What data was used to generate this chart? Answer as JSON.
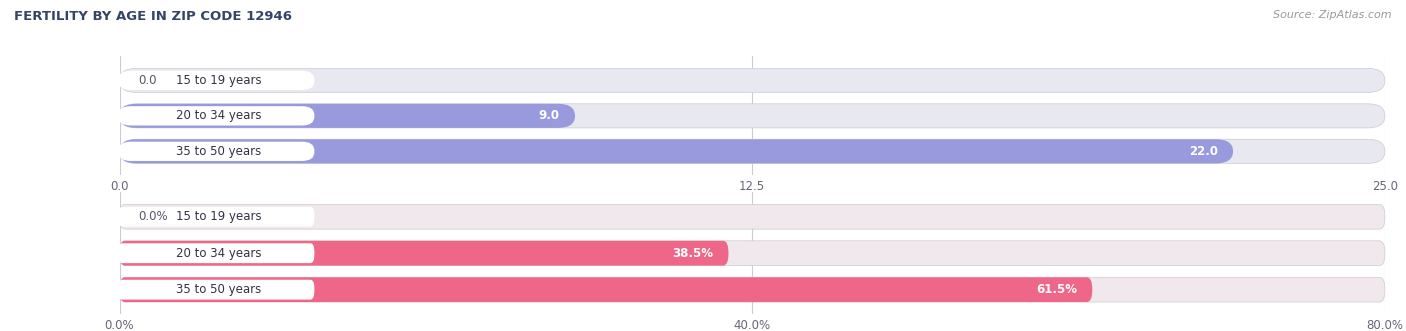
{
  "title": "Female Fertility by Age in Zip Code 12946",
  "title_display": "FERTILITY BY AGE IN ZIP CODE 12946",
  "source": "Source: ZipAtlas.com",
  "top_bars": {
    "categories": [
      "15 to 19 years",
      "20 to 34 years",
      "35 to 50 years"
    ],
    "values": [
      0.0,
      9.0,
      22.0
    ],
    "xlim": [
      0,
      25.0
    ],
    "xticks": [
      0.0,
      12.5,
      25.0
    ],
    "xtick_labels": [
      "0.0",
      "12.5",
      "25.0"
    ],
    "bar_color": "#9999dd",
    "bg_color": "#e8e8f0",
    "label_inside_threshold": 8
  },
  "bottom_bars": {
    "categories": [
      "15 to 19 years",
      "20 to 34 years",
      "35 to 50 years"
    ],
    "values": [
      0.0,
      38.5,
      61.5
    ],
    "xlim": [
      0,
      80.0
    ],
    "xticks": [
      0.0,
      40.0,
      80.0
    ],
    "xtick_labels": [
      "0.0%",
      "40.0%",
      "80.0%"
    ],
    "bar_color": "#ee6688",
    "bg_color": "#f0e8ec",
    "label_inside_threshold": 15
  },
  "title_color": "#334466",
  "source_color": "#999999",
  "bar_height": 0.68,
  "label_fontsize": 8.5,
  "cat_label_fontsize": 8.5,
  "tick_fontsize": 8.5
}
